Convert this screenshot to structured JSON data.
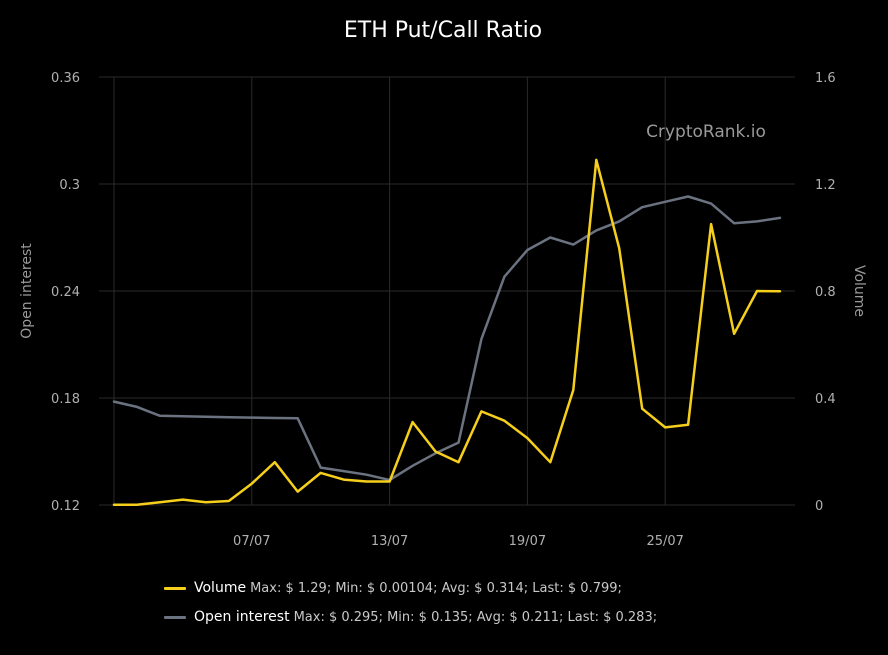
{
  "chart_data": {
    "type": "line",
    "title": "ETH Put/Call Ratio",
    "watermark": "CryptoRank.io",
    "left_axis": {
      "label": "Open interest",
      "range": [
        0.12,
        0.36
      ],
      "ticks": [
        "0.36",
        "0.3",
        "0.24",
        "0.18",
        "0.12"
      ],
      "tick_values": [
        0.36,
        0.3,
        0.24,
        0.18,
        0.12
      ]
    },
    "right_axis": {
      "label": "Volume",
      "range": [
        0,
        1.6
      ],
      "ticks": [
        "1.6",
        "1.2",
        "0.8",
        "0.4",
        "0"
      ],
      "tick_values": [
        1.6,
        1.2,
        0.8,
        0.4,
        0
      ]
    },
    "x_ticks": [
      {
        "label": "07/07",
        "index": 6
      },
      {
        "label": "13/07",
        "index": 12
      },
      {
        "label": "19/07",
        "index": 18
      },
      {
        "label": "25/07",
        "index": 24
      }
    ],
    "grid": true,
    "legend_position": "bottom",
    "series": [
      {
        "name": "Volume",
        "axis": "right",
        "color": "#f5cf1b",
        "values": [
          0.001,
          0.001,
          0.01,
          0.02,
          0.01,
          0.015,
          0.08,
          0.16,
          0.05,
          0.12,
          0.095,
          0.088,
          0.088,
          0.31,
          0.2,
          0.16,
          0.35,
          0.315,
          0.25,
          0.16,
          0.43,
          1.29,
          0.96,
          0.36,
          0.29,
          0.3,
          1.05,
          0.64,
          0.8,
          0.799
        ],
        "stats_text": "Max: $ 1.29; Min: $ 0.00104; Avg: $ 0.314; Last: $ 0.799;"
      },
      {
        "name": "Open interest",
        "axis": "left",
        "color": "#6b7280",
        "values": [
          0.178,
          0.175,
          0.17,
          0.1698,
          0.1695,
          0.1692,
          0.169,
          0.1688,
          0.1686,
          0.141,
          0.139,
          0.137,
          0.134,
          0.142,
          0.149,
          0.155,
          0.213,
          0.248,
          0.263,
          0.27,
          0.266,
          0.274,
          0.279,
          0.287,
          0.29,
          0.293,
          0.289,
          0.278,
          0.279,
          0.281
        ],
        "stats_text": "Max: $ 0.295; Min: $ 0.135; Avg: $ 0.211; Last: $ 0.283;"
      }
    ]
  }
}
